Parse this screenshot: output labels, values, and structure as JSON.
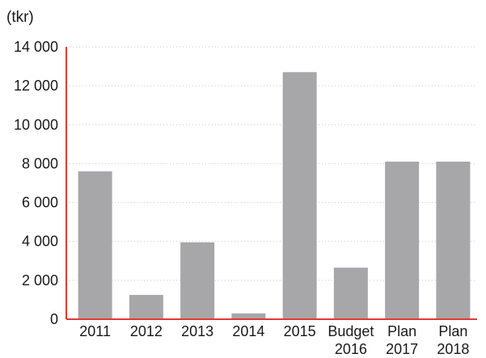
{
  "chart_data": {
    "type": "bar",
    "unit_label": "(tkr)",
    "categories": [
      [
        "2011"
      ],
      [
        "2012"
      ],
      [
        "2013"
      ],
      [
        "2014"
      ],
      [
        "2015"
      ],
      [
        "Budget",
        "2016"
      ],
      [
        "Plan",
        "2017"
      ],
      [
        "Plan",
        "2018"
      ]
    ],
    "values": [
      7600,
      1250,
      3950,
      300,
      12700,
      2650,
      8100,
      8100
    ],
    "ylim": [
      0,
      14000
    ],
    "yticks": [
      0,
      2000,
      4000,
      6000,
      8000,
      10000,
      12000,
      14000
    ],
    "ytick_labels": [
      "0",
      "2 000",
      "4 000",
      "6 000",
      "8 000",
      "10 000",
      "12 000",
      "14 000"
    ],
    "grid": true,
    "colors": {
      "bar": "#a7a7a9",
      "axis": "#e03a35",
      "grid": "#c8c8c8",
      "text": "#1a1a1a"
    }
  }
}
